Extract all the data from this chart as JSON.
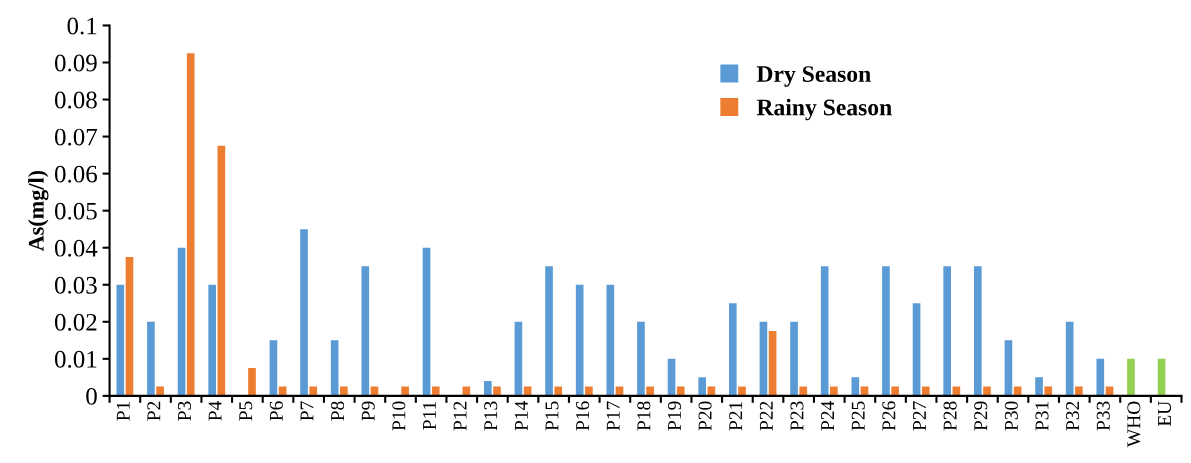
{
  "chart_data": {
    "type": "bar",
    "ylabel": "As(mg/l)",
    "categories": [
      "P1",
      "P2",
      "P3",
      "P4",
      "P5",
      "P6",
      "P7",
      "P8",
      "P9",
      "P10",
      "P11",
      "P12",
      "P13",
      "P14",
      "P15",
      "P16",
      "P17",
      "P18",
      "P19",
      "P20",
      "P21",
      "P22",
      "P23",
      "P24",
      "P25",
      "P26",
      "P27",
      "P28",
      "P29",
      "P30",
      "P31",
      "P32",
      "P33",
      "WHO",
      "EU"
    ],
    "series": [
      {
        "name": "Dry Season",
        "color": "#5b9bd5",
        "colors": [
          "#5b9bd5",
          "#5b9bd5",
          "#5b9bd5",
          "#5b9bd5",
          "#5b9bd5",
          "#5b9bd5",
          "#5b9bd5",
          "#5b9bd5",
          "#5b9bd5",
          "#5b9bd5",
          "#5b9bd5",
          "#5b9bd5",
          "#5b9bd5",
          "#5b9bd5",
          "#5b9bd5",
          "#5b9bd5",
          "#5b9bd5",
          "#5b9bd5",
          "#5b9bd5",
          "#5b9bd5",
          "#5b9bd5",
          "#5b9bd5",
          "#5b9bd5",
          "#5b9bd5",
          "#5b9bd5",
          "#5b9bd5",
          "#5b9bd5",
          "#5b9bd5",
          "#5b9bd5",
          "#5b9bd5",
          "#5b9bd5",
          "#5b9bd5",
          "#5b9bd5",
          "#92d050",
          "#92d050"
        ],
        "values": [
          0.03,
          0.02,
          0.04,
          0.03,
          0,
          0.015,
          0.045,
          0.015,
          0.035,
          0,
          0.04,
          0,
          0.004,
          0.02,
          0.035,
          0.03,
          0.03,
          0.02,
          0.01,
          0.005,
          0.025,
          0.02,
          0.02,
          0.035,
          0.005,
          0.035,
          0.025,
          0.035,
          0.035,
          0.015,
          0.005,
          0.02,
          0.01,
          0.01,
          0.01
        ]
      },
      {
        "name": "Rainy Season",
        "color": "#ed7d31",
        "values": [
          0.0375,
          0.0025,
          0.0925,
          0.0675,
          0.0075,
          0.0025,
          0.0025,
          0.0025,
          0.0025,
          0.0025,
          0.0025,
          0.0025,
          0.0025,
          0.0025,
          0.0025,
          0.0025,
          0.0025,
          0.0025,
          0.0025,
          0.0025,
          0.0025,
          0.0175,
          0.0025,
          0.0025,
          0.0025,
          0.0025,
          0.0025,
          0.0025,
          0.0025,
          0.0025,
          0.0025,
          0.0025,
          0.0025,
          null,
          null
        ]
      }
    ],
    "ylim": [
      0,
      0.1
    ],
    "yticks": [
      {
        "value": 0,
        "label": "0"
      },
      0.01,
      0.02,
      0.03,
      0.04,
      0.05,
      0.06,
      0.07,
      0.08,
      0.09,
      {
        "value": 0.1,
        "label": "0.1"
      }
    ],
    "grid": false,
    "legend": "top right"
  }
}
